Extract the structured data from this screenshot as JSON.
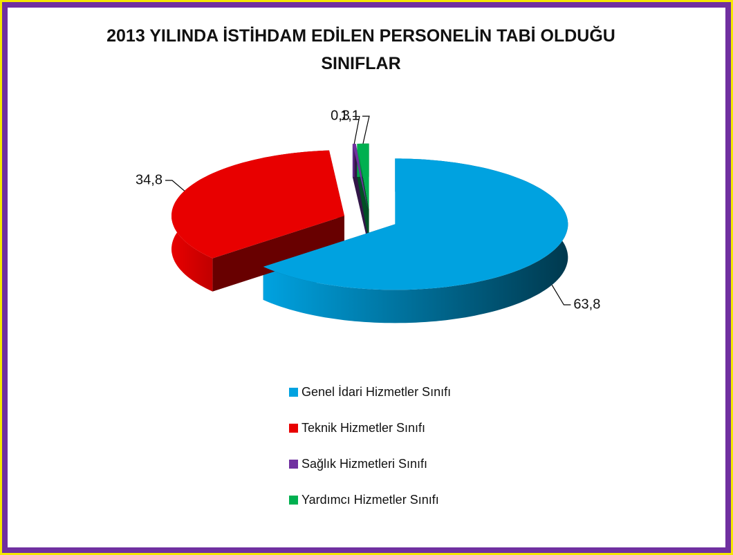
{
  "chart_data": {
    "type": "pie",
    "title": "2013 YILINDA İSTİHDAM EDİLEN PERSONELİN TABİ OLDUĞU SINIFLAR",
    "categories": [
      "Genel İdari Hizmetler Sınıfı",
      "Teknik Hizmetler Sınıfı",
      "Sağlık Hizmetleri Sınıfı",
      "Yardımcı Hizmetler Sınıfı"
    ],
    "values": [
      63.8,
      34.8,
      0.3,
      1.1
    ],
    "value_labels": [
      "63,8",
      "34,8",
      "0,3",
      "1,1"
    ],
    "colors": [
      "#00a2e0",
      "#e80000",
      "#7030a0",
      "#00b050"
    ],
    "legend": "bottom"
  }
}
